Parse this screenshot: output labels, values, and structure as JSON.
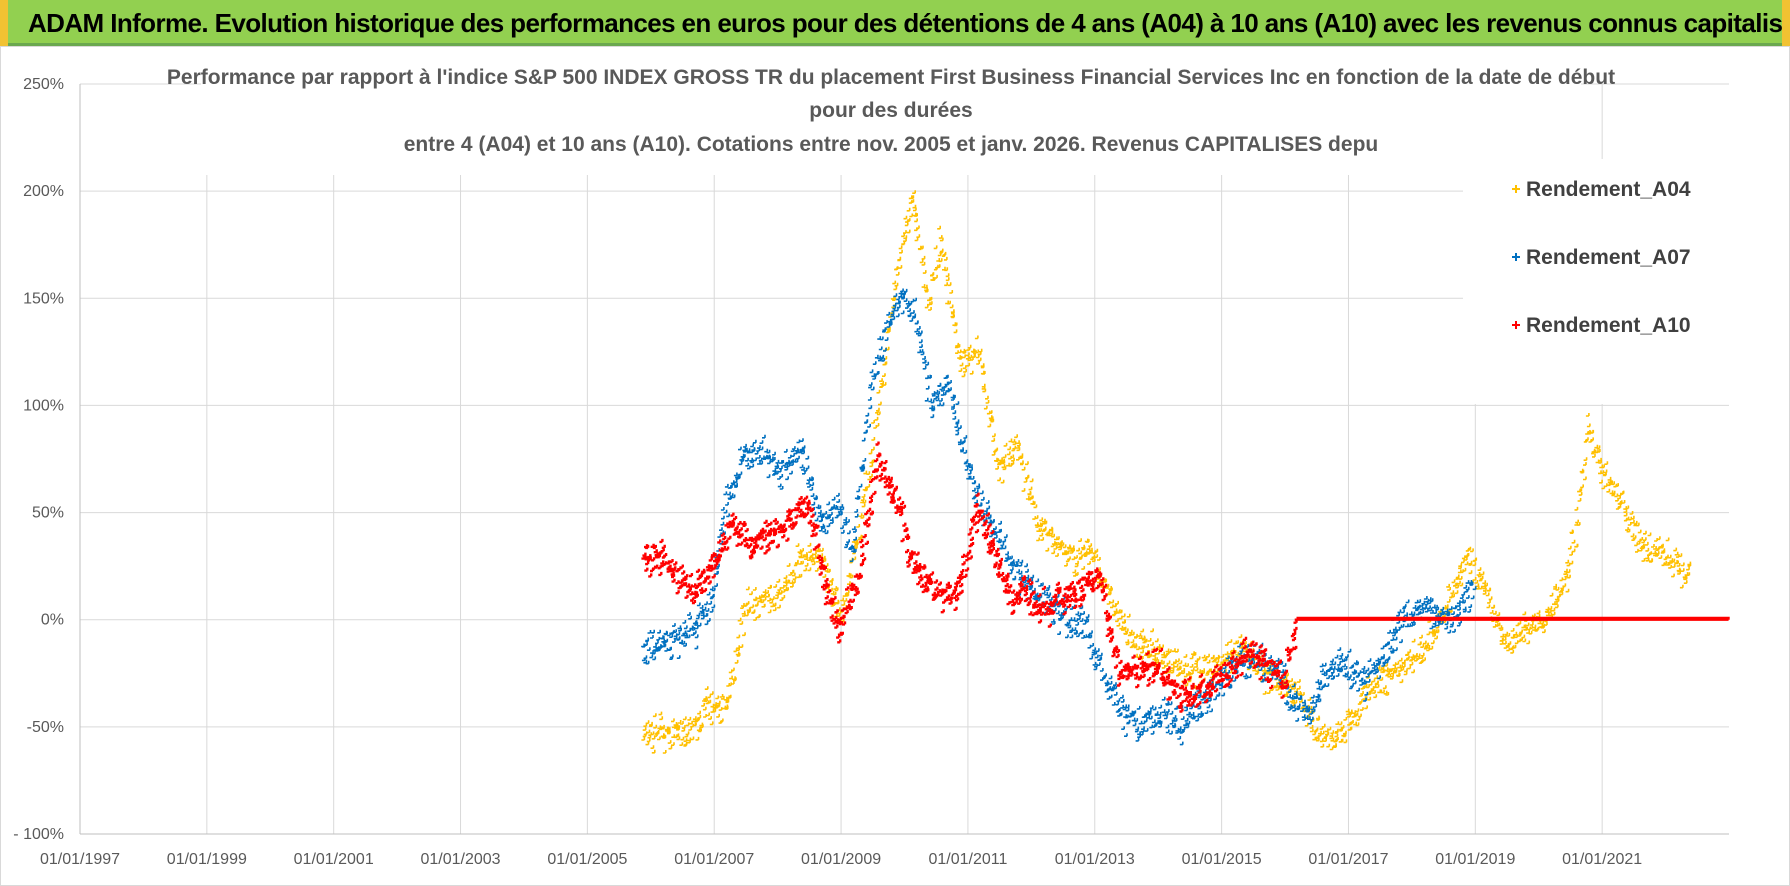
{
  "header": {
    "title": "ADAM Informe. Evolution historique des performances en euros pour des détentions de 4 ans (A04) à 10 ans (A10) avec les revenus connus capitalisés",
    "background_color": "#92d050",
    "accent_color": "#f1c232"
  },
  "chart_data": {
    "type": "scatter",
    "title_lines": [
      "Performance par rapport à l'indice S&P 500 INDEX GROSS TR  du placement First Business Financial Services Inc en fonction de la date de début",
      "pour des durées",
      "entre 4 (A04) et 10 ans (A10). Cotations entre nov. 2005 et janv. 2026. Revenus CAPITALISES depu"
    ],
    "xlabel": "",
    "ylabel": "",
    "x_range": [
      1997.0,
      2023.0
    ],
    "y_range": [
      -100,
      250
    ],
    "y_ticks": [
      -100,
      -50,
      0,
      50,
      100,
      150,
      200,
      250
    ],
    "y_tick_labels": [
      "- 100%",
      "-50%",
      "0%",
      "50%",
      "100%",
      "150%",
      "200%",
      "250%"
    ],
    "x_ticks": [
      1997,
      1999,
      2001,
      2003,
      2005,
      2007,
      2009,
      2011,
      2013,
      2015,
      2017,
      2019,
      2021
    ],
    "x_tick_labels": [
      "01/01/1997",
      "01/01/1999",
      "01/01/2001",
      "01/01/2003",
      "01/01/2005",
      "01/01/2007",
      "01/01/2009",
      "01/01/2011",
      "01/01/2013",
      "01/01/2015",
      "01/01/2017",
      "01/01/2019",
      "01/01/2021"
    ],
    "grid": true,
    "legend_position": "top-right",
    "series": [
      {
        "name": "Rendement_A04",
        "color": "#ffc000",
        "points": [
          [
            2005.9,
            -54
          ],
          [
            2006.3,
            -53
          ],
          [
            2006.7,
            -53
          ],
          [
            2006.9,
            -40
          ],
          [
            2007.2,
            -42
          ],
          [
            2007.5,
            5
          ],
          [
            2007.8,
            8
          ],
          [
            2008.1,
            12
          ],
          [
            2008.4,
            30
          ],
          [
            2008.7,
            28
          ],
          [
            2009.0,
            0
          ],
          [
            2009.3,
            40
          ],
          [
            2009.6,
            95
          ],
          [
            2009.9,
            165
          ],
          [
            2010.15,
            195
          ],
          [
            2010.4,
            150
          ],
          [
            2010.6,
            175
          ],
          [
            2010.9,
            120
          ],
          [
            2011.2,
            125
          ],
          [
            2011.5,
            70
          ],
          [
            2011.8,
            80
          ],
          [
            2012.1,
            45
          ],
          [
            2012.4,
            35
          ],
          [
            2012.7,
            28
          ],
          [
            2013.0,
            32
          ],
          [
            2013.3,
            5
          ],
          [
            2013.6,
            -10
          ],
          [
            2013.9,
            -15
          ],
          [
            2014.2,
            -20
          ],
          [
            2014.5,
            -25
          ],
          [
            2014.8,
            -22
          ],
          [
            2015.1,
            -20
          ],
          [
            2015.4,
            -15
          ],
          [
            2015.7,
            -25
          ],
          [
            2016.0,
            -30
          ],
          [
            2016.3,
            -38
          ],
          [
            2016.5,
            -52
          ],
          [
            2016.8,
            -55
          ],
          [
            2017.1,
            -45
          ],
          [
            2017.3,
            -35
          ],
          [
            2017.6,
            -28
          ],
          [
            2017.9,
            -20
          ],
          [
            2018.2,
            -15
          ],
          [
            2018.4,
            -5
          ],
          [
            2018.7,
            15
          ],
          [
            2018.9,
            30
          ],
          [
            2019.2,
            10
          ],
          [
            2019.5,
            -12
          ],
          [
            2019.8,
            -5
          ],
          [
            2020.1,
            0
          ],
          [
            2020.4,
            15
          ],
          [
            2020.6,
            40
          ],
          [
            2020.8,
            90
          ],
          [
            2021.0,
            70
          ],
          [
            2021.3,
            55
          ],
          [
            2021.6,
            35
          ],
          [
            2021.9,
            30
          ],
          [
            2022.2,
            25
          ],
          [
            2022.4,
            20
          ]
        ]
      },
      {
        "name": "Rendement_A07",
        "color": "#0070c0",
        "points": [
          [
            2005.9,
            -15
          ],
          [
            2006.3,
            -10
          ],
          [
            2006.7,
            -5
          ],
          [
            2007.0,
            10
          ],
          [
            2007.2,
            55
          ],
          [
            2007.5,
            75
          ],
          [
            2007.8,
            78
          ],
          [
            2008.1,
            68
          ],
          [
            2008.4,
            80
          ],
          [
            2008.7,
            45
          ],
          [
            2009.0,
            52
          ],
          [
            2009.2,
            30
          ],
          [
            2009.5,
            110
          ],
          [
            2009.8,
            140
          ],
          [
            2010.0,
            150
          ],
          [
            2010.2,
            140
          ],
          [
            2010.45,
            100
          ],
          [
            2010.7,
            110
          ],
          [
            2010.95,
            80
          ],
          [
            2011.2,
            55
          ],
          [
            2011.5,
            40
          ],
          [
            2011.7,
            25
          ],
          [
            2012.0,
            15
          ],
          [
            2012.3,
            5
          ],
          [
            2012.6,
            0
          ],
          [
            2012.9,
            -5
          ],
          [
            2013.2,
            -30
          ],
          [
            2013.5,
            -45
          ],
          [
            2013.8,
            -48
          ],
          [
            2014.1,
            -45
          ],
          [
            2014.4,
            -50
          ],
          [
            2014.7,
            -40
          ],
          [
            2015.0,
            -30
          ],
          [
            2015.3,
            -20
          ],
          [
            2015.6,
            -20
          ],
          [
            2015.9,
            -25
          ],
          [
            2016.2,
            -40
          ],
          [
            2016.4,
            -45
          ],
          [
            2016.6,
            -30
          ],
          [
            2016.9,
            -20
          ],
          [
            2017.1,
            -25
          ],
          [
            2017.3,
            -30
          ],
          [
            2017.6,
            -15
          ],
          [
            2017.9,
            0
          ],
          [
            2018.2,
            5
          ],
          [
            2018.5,
            0
          ],
          [
            2018.8,
            5
          ],
          [
            2019.0,
            15
          ]
        ]
      },
      {
        "name": "Rendement_A10",
        "color": "#ff0000",
        "points": [
          [
            2005.9,
            30
          ],
          [
            2006.3,
            25
          ],
          [
            2006.7,
            12
          ],
          [
            2007.0,
            25
          ],
          [
            2007.3,
            45
          ],
          [
            2007.6,
            35
          ],
          [
            2007.9,
            40
          ],
          [
            2008.2,
            45
          ],
          [
            2008.5,
            55
          ],
          [
            2008.8,
            10
          ],
          [
            2009.0,
            -5
          ],
          [
            2009.3,
            20
          ],
          [
            2009.6,
            75
          ],
          [
            2009.9,
            55
          ],
          [
            2010.1,
            30
          ],
          [
            2010.4,
            15
          ],
          [
            2010.7,
            10
          ],
          [
            2010.9,
            15
          ],
          [
            2011.15,
            50
          ],
          [
            2011.4,
            35
          ],
          [
            2011.7,
            10
          ],
          [
            2011.9,
            15
          ],
          [
            2012.2,
            5
          ],
          [
            2012.5,
            10
          ],
          [
            2012.8,
            15
          ],
          [
            2013.1,
            20
          ],
          [
            2013.4,
            -25
          ],
          [
            2013.7,
            -25
          ],
          [
            2014.0,
            -22
          ],
          [
            2014.3,
            -35
          ],
          [
            2014.6,
            -35
          ],
          [
            2014.9,
            -30
          ],
          [
            2015.1,
            -25
          ],
          [
            2015.4,
            -15
          ],
          [
            2015.7,
            -20
          ],
          [
            2016.0,
            -30
          ],
          [
            2016.2,
            0
          ],
          [
            2017.0,
            0
          ],
          [
            2018.0,
            0
          ],
          [
            2019.0,
            0
          ],
          [
            2020.0,
            0
          ],
          [
            2021.0,
            0
          ],
          [
            2022.0,
            0
          ],
          [
            2023.0,
            0
          ]
        ]
      }
    ]
  }
}
